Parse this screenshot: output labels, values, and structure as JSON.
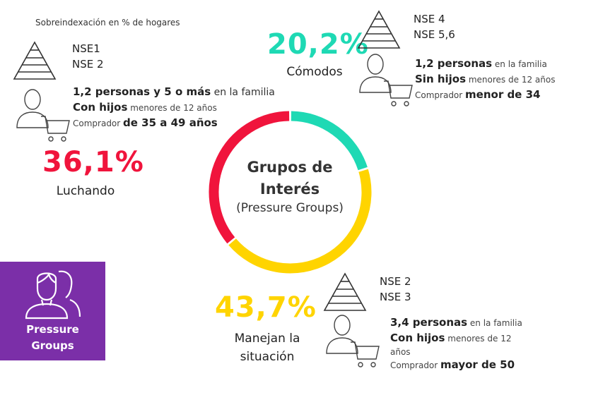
{
  "note": "Sobreindexación en % de hogares",
  "colors": {
    "luchando": "#f0143c",
    "comodos": "#1ed9b4",
    "manejan": "#ffd400",
    "badge": "#7b2fa8"
  },
  "center": {
    "title_line1": "Grupos de",
    "title_line2": "Interés",
    "subtitle": "(Pressure Groups)"
  },
  "badge": {
    "line1": "Pressure",
    "line2": "Groups",
    "icon": "people-icon"
  },
  "groups": {
    "luchando": {
      "pct": "36,1%",
      "label": "Luchando",
      "nse1": "NSE1",
      "nse2": "NSE 2",
      "d1_bold": "1,2 personas y 5 o más",
      "d1_rest": " en la familia",
      "d2_bold": "Con hijos",
      "d2_rest": " menores de 12 años",
      "d3_pre": "Comprador ",
      "d3_bold": "de 35 a 49 años"
    },
    "comodos": {
      "pct": "20,2%",
      "label": "Cómodos",
      "nse1": "NSE 4",
      "nse2": "NSE 5,6",
      "d1_bold": "1,2 personas",
      "d1_rest": " en la familia",
      "d2_bold": "Sin hijos",
      "d2_rest": " menores de 12 años",
      "d3_pre": "Comprador ",
      "d3_bold": "menor de 34"
    },
    "manejan": {
      "pct": "43,7%",
      "label_line1": "Manejan la",
      "label_line2": "situación",
      "nse1": "NSE 2",
      "nse2": "NSE 3",
      "d1_bold": "3,4 personas",
      "d1_rest": " en la familia",
      "d2_bold": "Con hijos",
      "d2_rest": " menores de 12",
      "d2_rest2": "años",
      "d3_pre": "Comprador ",
      "d3_bold": "mayor de 50"
    }
  },
  "chart_data": {
    "type": "pie",
    "style": "donut",
    "categories": [
      "Cómodos",
      "Manejan la situación",
      "Luchando"
    ],
    "values": [
      20.2,
      43.7,
      36.1
    ],
    "colors": [
      "#1ed9b4",
      "#ffd400",
      "#f0143c"
    ],
    "title": "Grupos de Interés",
    "subtitle": "(Pressure Groups)"
  }
}
